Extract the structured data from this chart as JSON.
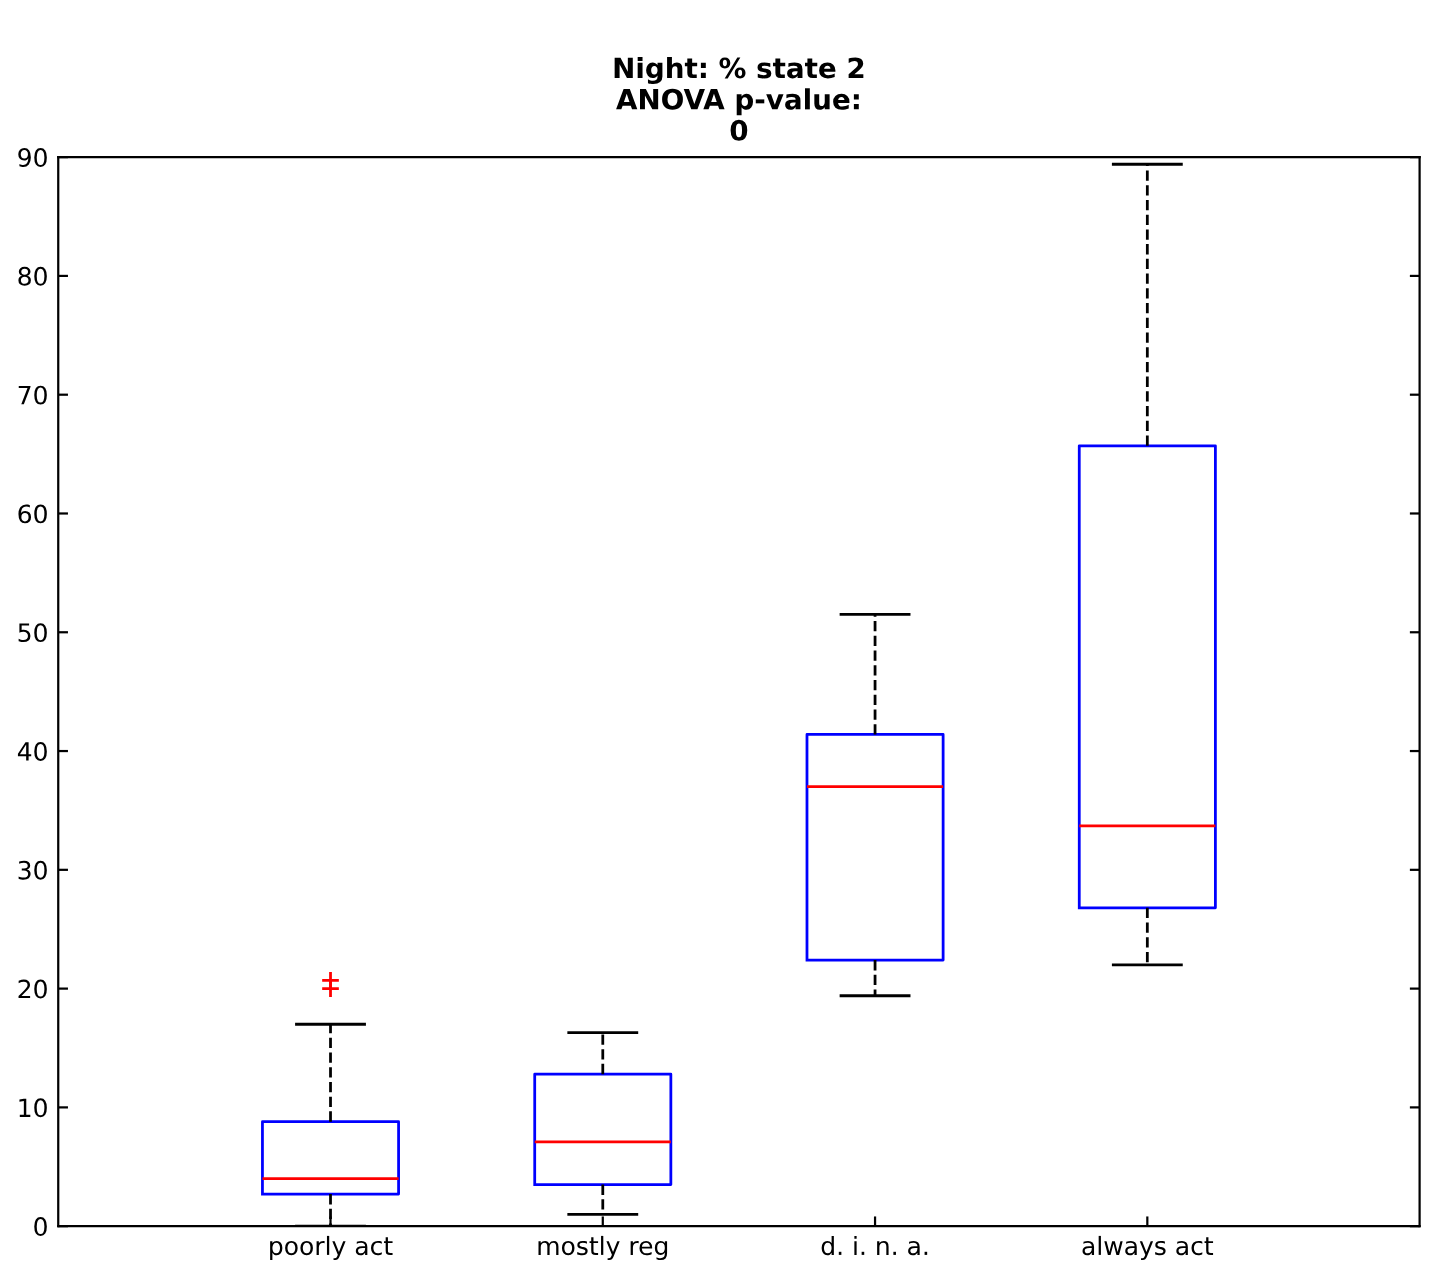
{
  "chart_data": {
    "type": "box",
    "title": "Night: % state 2\nANOVA p-value:\n0",
    "categories": [
      "poorly act",
      "mostly reg",
      "d. i. n. a.",
      "always act"
    ],
    "boxes": [
      {
        "low": 0,
        "q1": 2.7,
        "median": 4.0,
        "q3": 8.8,
        "high": 17.0,
        "outliers": [
          20.7,
          20.0
        ]
      },
      {
        "low": 1.0,
        "q1": 3.5,
        "median": 7.1,
        "q3": 12.8,
        "high": 16.3
      },
      {
        "low": 19.4,
        "q1": 22.4,
        "median": 37.0,
        "q3": 41.4,
        "high": 51.5
      },
      {
        "low": 22.0,
        "q1": 26.8,
        "median": 33.7,
        "q3": 65.7,
        "high": 89.4
      }
    ],
    "color": "#0000ff",
    "ylim": [
      0,
      90
    ],
    "yticks": [
      0,
      10,
      20,
      30,
      40,
      50,
      60,
      70,
      80,
      90
    ],
    "grid": false
  }
}
